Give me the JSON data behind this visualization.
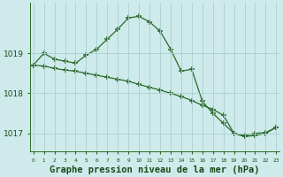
{
  "title": "Graphe pression niveau de la mer (hPa)",
  "x_values": [
    0,
    1,
    2,
    3,
    4,
    5,
    6,
    7,
    8,
    9,
    10,
    11,
    12,
    13,
    14,
    15,
    16,
    17,
    18,
    19,
    20,
    21,
    22,
    23
  ],
  "y_series1": [
    1018.7,
    1019.0,
    1018.85,
    1018.8,
    1018.75,
    1018.95,
    1019.1,
    1019.35,
    1019.6,
    1019.88,
    1019.92,
    1019.78,
    1019.55,
    1019.1,
    1018.55,
    1018.6,
    1017.8,
    1017.5,
    1017.25,
    1017.0,
    1016.92,
    1016.95,
    1017.0,
    1017.15
  ],
  "y_series2": [
    1018.7,
    1018.68,
    1018.62,
    1018.58,
    1018.55,
    1018.5,
    1018.45,
    1018.4,
    1018.35,
    1018.3,
    1018.22,
    1018.15,
    1018.08,
    1018.0,
    1017.92,
    1017.82,
    1017.7,
    1017.6,
    1017.45,
    1017.0,
    1016.95,
    1017.0,
    1017.02,
    1017.15
  ],
  "line_color": "#2a6a2a",
  "bg_color": "#ceeaea",
  "grid_color": "#a8d0d0",
  "text_color": "#1a4a1a",
  "ylim": [
    1016.55,
    1020.25
  ],
  "yticks": [
    1017,
    1018,
    1019
  ],
  "xlim": [
    -0.3,
    23.3
  ],
  "title_fontsize": 7.5,
  "marker": "+",
  "linewidth": 0.9,
  "markersize": 4.5,
  "markeredgewidth": 1.1
}
